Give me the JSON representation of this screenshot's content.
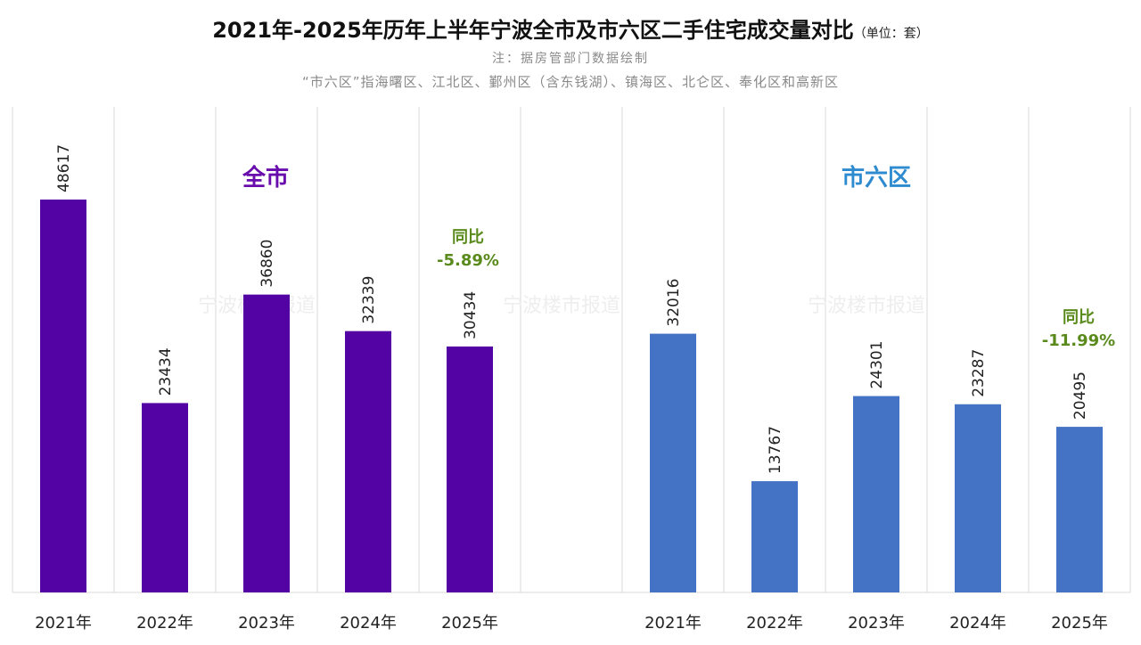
{
  "title": "2021年-2025年历年上半年宁波全市及市六区二手住宅成交量对比",
  "unit": "（单位：套）",
  "notes": [
    "注：据房管部门数据绘制",
    "“市六区”指海曙区、江北区、鄞州区（含东钱湖）、镇海区、北仑区、奉化区和高新区"
  ],
  "watermark": "宁波楼市报道",
  "chart_data": {
    "type": "bar",
    "ylim": [
      0,
      50000
    ],
    "grid": "vertical separators",
    "groups": [
      {
        "name": "全市",
        "color": "#5302a3",
        "categories": [
          "2021年",
          "2022年",
          "2023年",
          "2024年",
          "2025年"
        ],
        "values": [
          48617,
          23434,
          36860,
          32339,
          30434
        ],
        "yoy_label": "同比",
        "yoy_value": "-5.89%"
      },
      {
        "name": "市六区",
        "color": "#4472c4",
        "categories": [
          "2021年",
          "2022年",
          "2023年",
          "2024年",
          "2025年"
        ],
        "values": [
          32016,
          13767,
          24301,
          23287,
          20495
        ],
        "yoy_label": "同比",
        "yoy_value": "-11.99%"
      }
    ],
    "label_colors": {
      "全市": "#6a0dad",
      "市六区": "#2e8bd0",
      "yoy": "#5a8a1c"
    }
  }
}
